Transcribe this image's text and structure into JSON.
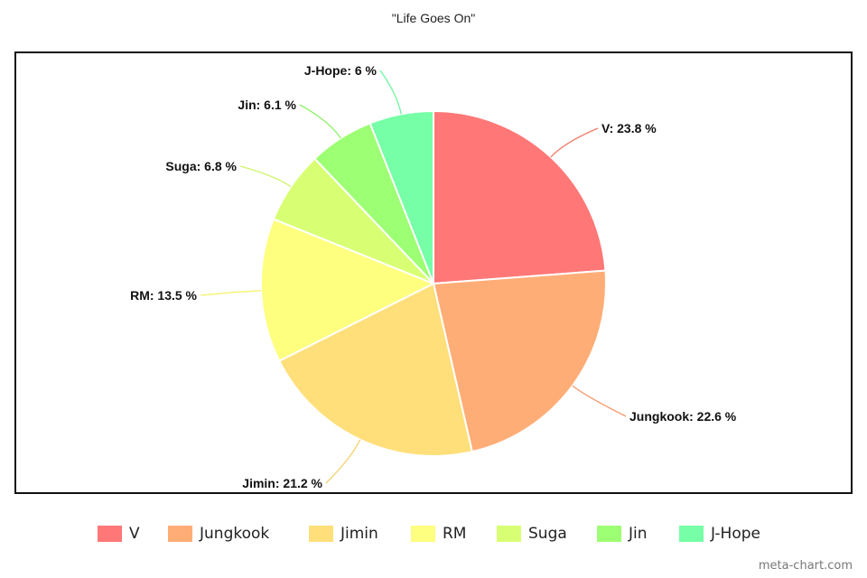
{
  "watermark": "meta-chart.com",
  "chart_data": {
    "type": "pie",
    "title": "\"Life Goes On\"",
    "legend_position": "bottom",
    "categories": [
      "V",
      "Jungkook",
      "Jimin",
      "RM",
      "Suga",
      "Jin",
      "J-Hope"
    ],
    "values": [
      23.8,
      22.6,
      21.2,
      13.5,
      6.8,
      6.1,
      6.0
    ],
    "data_labels": [
      "V: 23.8 %",
      "Jungkook: 22.6 %",
      "Jimin: 21.2 %",
      "RM: 13.5 %",
      "Suga: 6.8 %",
      "Jin: 6.1 %",
      "J-Hope: 6 %"
    ],
    "colors": [
      "#ff7777",
      "#ffad77",
      "#ffdf7a",
      "#ffff7f",
      "#d8ff74",
      "#9dff73",
      "#76ffa6"
    ],
    "leader_colors": [
      "#ee7b68",
      "#f39a6f",
      "#f3d26f",
      "#f6f36e",
      "#cdf56a",
      "#8ef268",
      "#6ef4a0"
    ]
  }
}
